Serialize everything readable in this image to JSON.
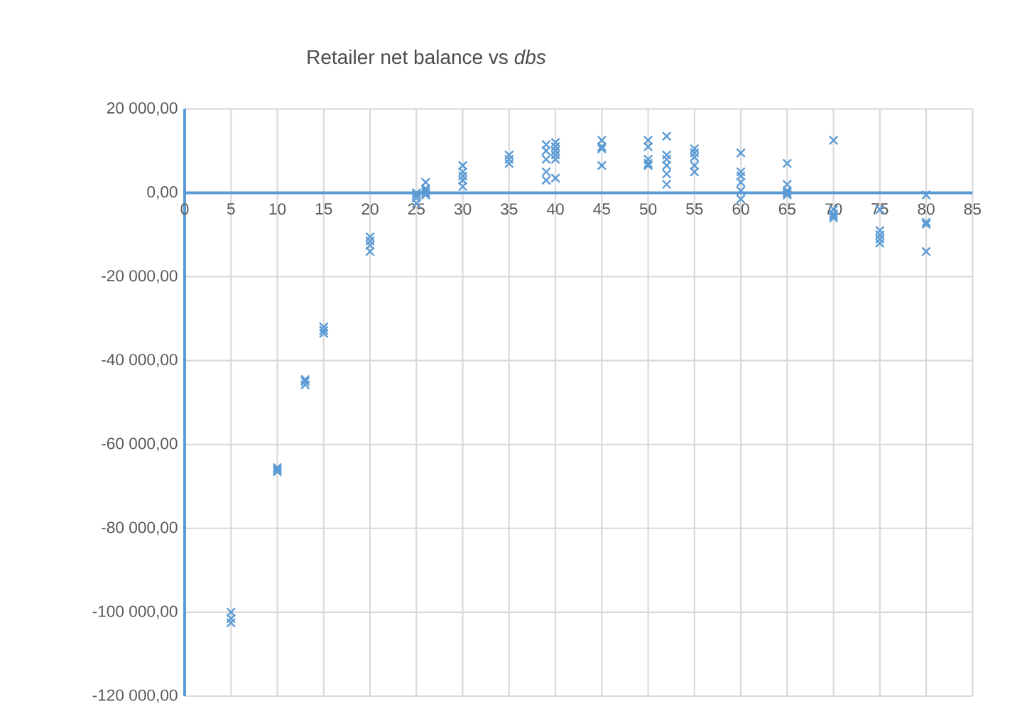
{
  "chart_data": {
    "type": "scatter",
    "title": "Retailer net balance vs *dbs*",
    "x": [
      5,
      5,
      5,
      10,
      10,
      10,
      13,
      13,
      13,
      15,
      15,
      15,
      20,
      20,
      20,
      20,
      25,
      25,
      25,
      25,
      26,
      26,
      26,
      26,
      26,
      30,
      30,
      30,
      30,
      30,
      35,
      35,
      35,
      39,
      39,
      39,
      39,
      39,
      40,
      40,
      40,
      40,
      40,
      40,
      45,
      45,
      45,
      45,
      50,
      50,
      50,
      50,
      50,
      52,
      52,
      52,
      52,
      52,
      52,
      55,
      55,
      55,
      55,
      55,
      60,
      60,
      60,
      60,
      60,
      60,
      65,
      65,
      65,
      65,
      65,
      70,
      70,
      70,
      70,
      70,
      75,
      75,
      75,
      75,
      75,
      80,
      80,
      80,
      80
    ],
    "values": [
      -100000,
      -101500,
      -102500,
      -65500,
      -66000,
      -66500,
      -44500,
      -45000,
      -45800,
      -32000,
      -32800,
      -33500,
      -10500,
      -11500,
      -12500,
      -14000,
      0,
      -500,
      -1200,
      -2500,
      2500,
      1000,
      500,
      0,
      -500,
      6500,
      5000,
      4000,
      3000,
      1500,
      9000,
      8000,
      7000,
      11500,
      10000,
      8000,
      5000,
      3000,
      12000,
      11000,
      10000,
      9000,
      8000,
      3500,
      12500,
      11000,
      10500,
      6500,
      12500,
      11000,
      8000,
      7000,
      6500,
      13500,
      9000,
      8000,
      6500,
      4500,
      2000,
      10500,
      9500,
      8500,
      6500,
      5000,
      9500,
      5000,
      4000,
      2500,
      500,
      -1500,
      7000,
      2000,
      500,
      0,
      -500,
      12500,
      -4000,
      -5000,
      -5500,
      -6000,
      -4000,
      -9000,
      -10000,
      -11000,
      -12000,
      -500,
      -7000,
      -7500,
      -14000
    ],
    "color": "#5b9bd5",
    "marker": "cross",
    "grid": true,
    "xlim": [
      0,
      85
    ],
    "xticks": [
      0,
      5,
      10,
      15,
      20,
      25,
      30,
      35,
      40,
      45,
      50,
      55,
      60,
      65,
      70,
      75,
      80,
      85
    ],
    "ylim": [
      -120000,
      20000
    ],
    "yticks": [
      {
        "value": -120000,
        "label": "-120 000,00"
      },
      {
        "value": -100000,
        "label": "-100 000,00"
      },
      {
        "value": -80000,
        "label": "-80 000,00"
      },
      {
        "value": -60000,
        "label": "-60 000,00"
      },
      {
        "value": -40000,
        "label": "-40 000,00"
      },
      {
        "value": -20000,
        "label": "-20 000,00"
      },
      {
        "value": 0,
        "label": "0,00"
      },
      {
        "value": 20000,
        "label": "20 000,00"
      }
    ]
  }
}
